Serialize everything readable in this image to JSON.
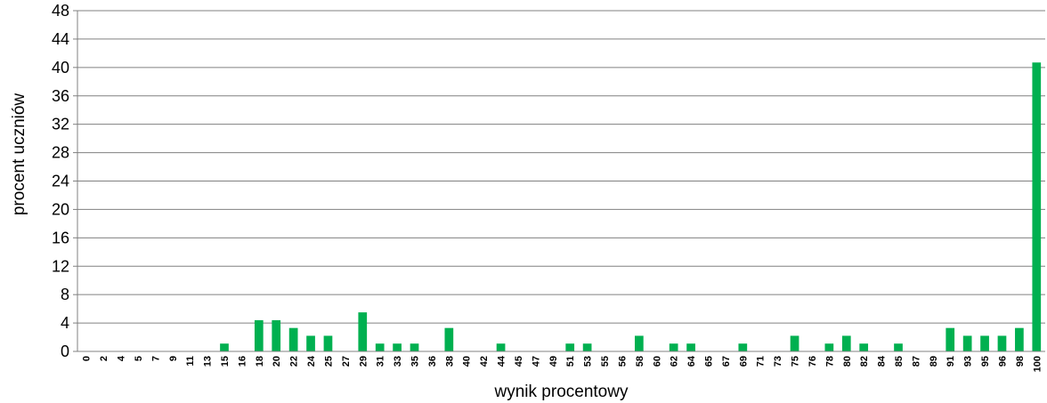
{
  "chart_data": {
    "type": "bar",
    "xlabel": "wynik procentowy",
    "ylabel": "procent uczniów",
    "ylim": [
      0,
      48
    ],
    "yticks": [
      0,
      4,
      8,
      12,
      16,
      20,
      24,
      28,
      32,
      36,
      40,
      44,
      48
    ],
    "grid": true,
    "bar_color": "#00b050",
    "categories": [
      "0",
      "2",
      "4",
      "5",
      "7",
      "9",
      "11",
      "13",
      "15",
      "16",
      "18",
      "20",
      "22",
      "24",
      "25",
      "27",
      "29",
      "31",
      "33",
      "35",
      "36",
      "38",
      "40",
      "42",
      "44",
      "45",
      "47",
      "49",
      "51",
      "53",
      "55",
      "56",
      "58",
      "60",
      "62",
      "64",
      "65",
      "67",
      "69",
      "71",
      "73",
      "75",
      "76",
      "78",
      "80",
      "82",
      "84",
      "85",
      "87",
      "89",
      "91",
      "93",
      "95",
      "96",
      "98",
      "100"
    ],
    "values": [
      0,
      0,
      0,
      0,
      0,
      0,
      0,
      0,
      1.1,
      0,
      4.4,
      4.4,
      3.3,
      2.2,
      2.2,
      0,
      5.5,
      1.1,
      1.1,
      1.1,
      0,
      3.3,
      0,
      0,
      1.1,
      0,
      0,
      0,
      1.1,
      1.1,
      0,
      0,
      2.2,
      0,
      1.1,
      1.1,
      0,
      0,
      1.1,
      0,
      0,
      2.2,
      0,
      1.1,
      2.2,
      1.1,
      0,
      1.1,
      0,
      0,
      3.3,
      2.2,
      2.2,
      2.2,
      3.3,
      40.7
    ]
  }
}
